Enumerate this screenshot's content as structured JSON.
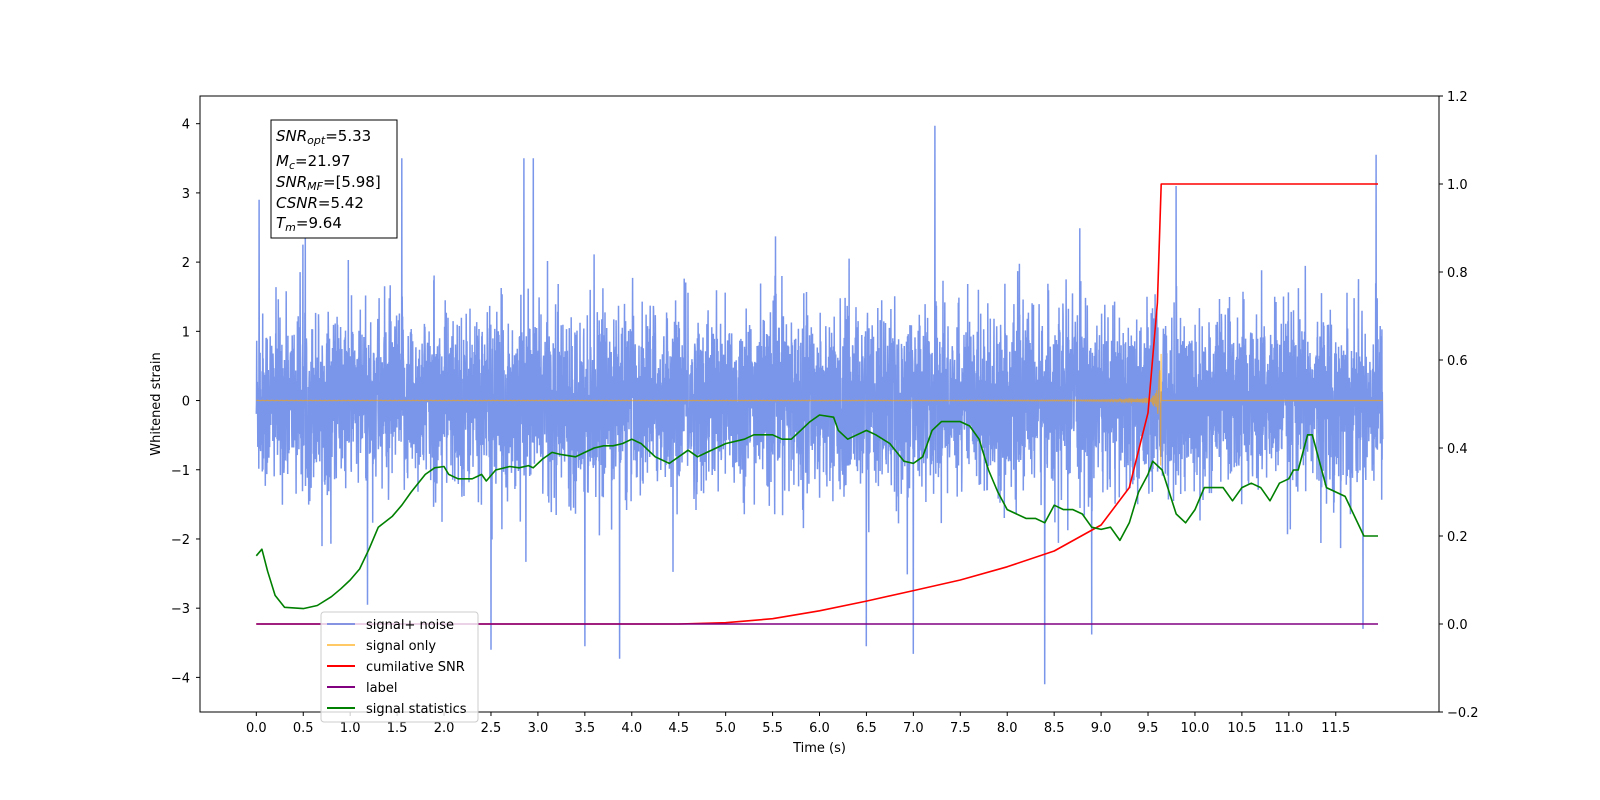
{
  "chart_data": {
    "type": "line",
    "title": "",
    "xlabel": "Time (s)",
    "ylabel": "Whitened strain",
    "ylabel_right": "",
    "xlim": [
      -0.6,
      12.6
    ],
    "ylim": [
      -4.5,
      4.4
    ],
    "ylim_right": [
      -0.2,
      1.2
    ],
    "x_ticks": [
      0.0,
      0.5,
      1.0,
      1.5,
      2.0,
      2.5,
      3.0,
      3.5,
      4.0,
      4.5,
      5.0,
      5.5,
      6.0,
      6.5,
      7.0,
      7.5,
      8.0,
      8.5,
      9.0,
      9.5,
      10.0,
      10.5,
      11.0,
      11.5
    ],
    "x_tick_labels": [
      "0.0",
      "0.5",
      "1.0",
      "1.5",
      "2.0",
      "2.5",
      "3.0",
      "3.5",
      "4.0",
      "4.5",
      "5.0",
      "5.5",
      "6.0",
      "6.5",
      "7.0",
      "7.5",
      "8.0",
      "8.5",
      "9.0",
      "9.5",
      "10.0",
      "10.5",
      "11.0",
      "11.5"
    ],
    "y_ticks": [
      -4,
      -3,
      -2,
      -1,
      0,
      1,
      2,
      3,
      4
    ],
    "y_tick_labels": [
      "−4",
      "−3",
      "−2",
      "−1",
      "0",
      "1",
      "2",
      "3",
      "4"
    ],
    "y_ticks_right": [
      -0.2,
      0.0,
      0.2,
      0.4,
      0.6,
      0.8,
      1.0,
      1.2
    ],
    "y_tick_labels_right": [
      "−0.2",
      "0.0",
      "0.2",
      "0.4",
      "0.6",
      "0.8",
      "1.0",
      "1.2"
    ],
    "grid": false,
    "legend_position": "lower-left",
    "stats_box": {
      "snr_opt": {
        "main": "SNR",
        "sub": "opt",
        "value": "=5.33"
      },
      "mc": {
        "main": "M",
        "sub": "c",
        "value": "=21.97"
      },
      "snr_mf": {
        "main": "SNR",
        "sub": "MF",
        "value": "=[5.98]"
      },
      "csnr": {
        "main": "CSNR",
        "value": "=5.42"
      },
      "tm": {
        "main": "T",
        "sub": "m",
        "value": "=9.64"
      }
    },
    "series": [
      {
        "name": "signal+ noise",
        "axis": "left",
        "color": "#4169e1",
        "style": "dense noise time series, amplitude roughly ±1.6 with spikes to ±4",
        "x_range": [
          0.0,
          12.0
        ],
        "notable_peaks": [
          [
            0.03,
            2.9
          ],
          [
            1.55,
            3.5
          ],
          [
            2.85,
            3.5
          ],
          [
            2.95,
            3.5
          ],
          [
            7.23,
            3.97
          ],
          [
            9.8,
            3.1
          ],
          [
            11.93,
            3.55
          ],
          [
            8.4,
            -4.1
          ],
          [
            3.87,
            -3.73
          ],
          [
            7.0,
            -3.66
          ],
          [
            8.9,
            -3.38
          ],
          [
            2.5,
            -3.6
          ],
          [
            3.5,
            -3.55
          ],
          [
            6.5,
            -3.55
          ]
        ]
      },
      {
        "name": "signal only",
        "axis": "left",
        "color": "#ffa500",
        "style": "chirp oscillation near 0, amplitude growing until merger",
        "merger_time": 9.64,
        "peak_amplitude": 1.0
      },
      {
        "name": "cumilative SNR",
        "axis": "right",
        "color": "#ff0000",
        "x": [
          0,
          4.5,
          5.0,
          5.5,
          6.0,
          6.5,
          7.0,
          7.5,
          8.0,
          8.5,
          9.0,
          9.3,
          9.5,
          9.6,
          9.64,
          9.65,
          11.95
        ],
        "y": [
          0.0,
          0.0,
          0.003,
          0.012,
          0.03,
          0.052,
          0.076,
          0.1,
          0.13,
          0.166,
          0.225,
          0.31,
          0.48,
          0.73,
          1.0,
          1.0,
          1.0
        ]
      },
      {
        "name": "label",
        "axis": "right",
        "color": "#800080",
        "x": [
          0,
          11.95
        ],
        "y": [
          0.0,
          0.0
        ]
      },
      {
        "name": "signal statistics",
        "axis": "right",
        "color": "#008000",
        "x": [
          0.0,
          0.06,
          0.12,
          0.2,
          0.3,
          0.5,
          0.65,
          0.8,
          0.9,
          1.0,
          1.1,
          1.2,
          1.3,
          1.45,
          1.55,
          1.65,
          1.8,
          1.9,
          2.0,
          2.05,
          2.15,
          2.3,
          2.4,
          2.45,
          2.55,
          2.7,
          2.8,
          2.9,
          2.95,
          3.05,
          3.15,
          3.25,
          3.4,
          3.5,
          3.6,
          3.7,
          3.8,
          3.9,
          4.0,
          4.1,
          4.25,
          4.4,
          4.5,
          4.6,
          4.7,
          4.8,
          4.9,
          5.0,
          5.2,
          5.3,
          5.4,
          5.5,
          5.6,
          5.7,
          5.8,
          5.9,
          6.0,
          6.15,
          6.2,
          6.3,
          6.4,
          6.5,
          6.6,
          6.75,
          6.9,
          7.0,
          7.1,
          7.2,
          7.3,
          7.5,
          7.6,
          7.7,
          7.8,
          7.9,
          8.0,
          8.2,
          8.3,
          8.4,
          8.5,
          8.6,
          8.7,
          8.8,
          8.9,
          9.0,
          9.1,
          9.2,
          9.3,
          9.4,
          9.5,
          9.55,
          9.65,
          9.8,
          9.9,
          10.0,
          10.1,
          10.3,
          10.4,
          10.5,
          10.6,
          10.7,
          10.8,
          10.9,
          11.0,
          11.05,
          11.1,
          11.2,
          11.25,
          11.4,
          11.6,
          11.8,
          11.95
        ],
        "y": [
          0.155,
          0.17,
          0.12,
          0.065,
          0.038,
          0.035,
          0.042,
          0.062,
          0.08,
          0.1,
          0.125,
          0.17,
          0.22,
          0.245,
          0.27,
          0.3,
          0.34,
          0.355,
          0.358,
          0.34,
          0.33,
          0.33,
          0.34,
          0.325,
          0.35,
          0.358,
          0.355,
          0.36,
          0.355,
          0.375,
          0.39,
          0.385,
          0.38,
          0.39,
          0.4,
          0.405,
          0.405,
          0.41,
          0.42,
          0.41,
          0.38,
          0.365,
          0.38,
          0.395,
          0.38,
          0.39,
          0.4,
          0.41,
          0.42,
          0.43,
          0.43,
          0.43,
          0.42,
          0.42,
          0.44,
          0.46,
          0.475,
          0.47,
          0.44,
          0.42,
          0.43,
          0.44,
          0.43,
          0.41,
          0.37,
          0.365,
          0.38,
          0.44,
          0.46,
          0.46,
          0.45,
          0.42,
          0.35,
          0.3,
          0.26,
          0.24,
          0.24,
          0.23,
          0.27,
          0.26,
          0.26,
          0.25,
          0.22,
          0.215,
          0.22,
          0.19,
          0.23,
          0.3,
          0.34,
          0.37,
          0.35,
          0.25,
          0.23,
          0.26,
          0.31,
          0.31,
          0.28,
          0.31,
          0.32,
          0.31,
          0.28,
          0.32,
          0.33,
          0.35,
          0.35,
          0.43,
          0.43,
          0.31,
          0.29,
          0.2,
          0.2
        ]
      }
    ]
  }
}
